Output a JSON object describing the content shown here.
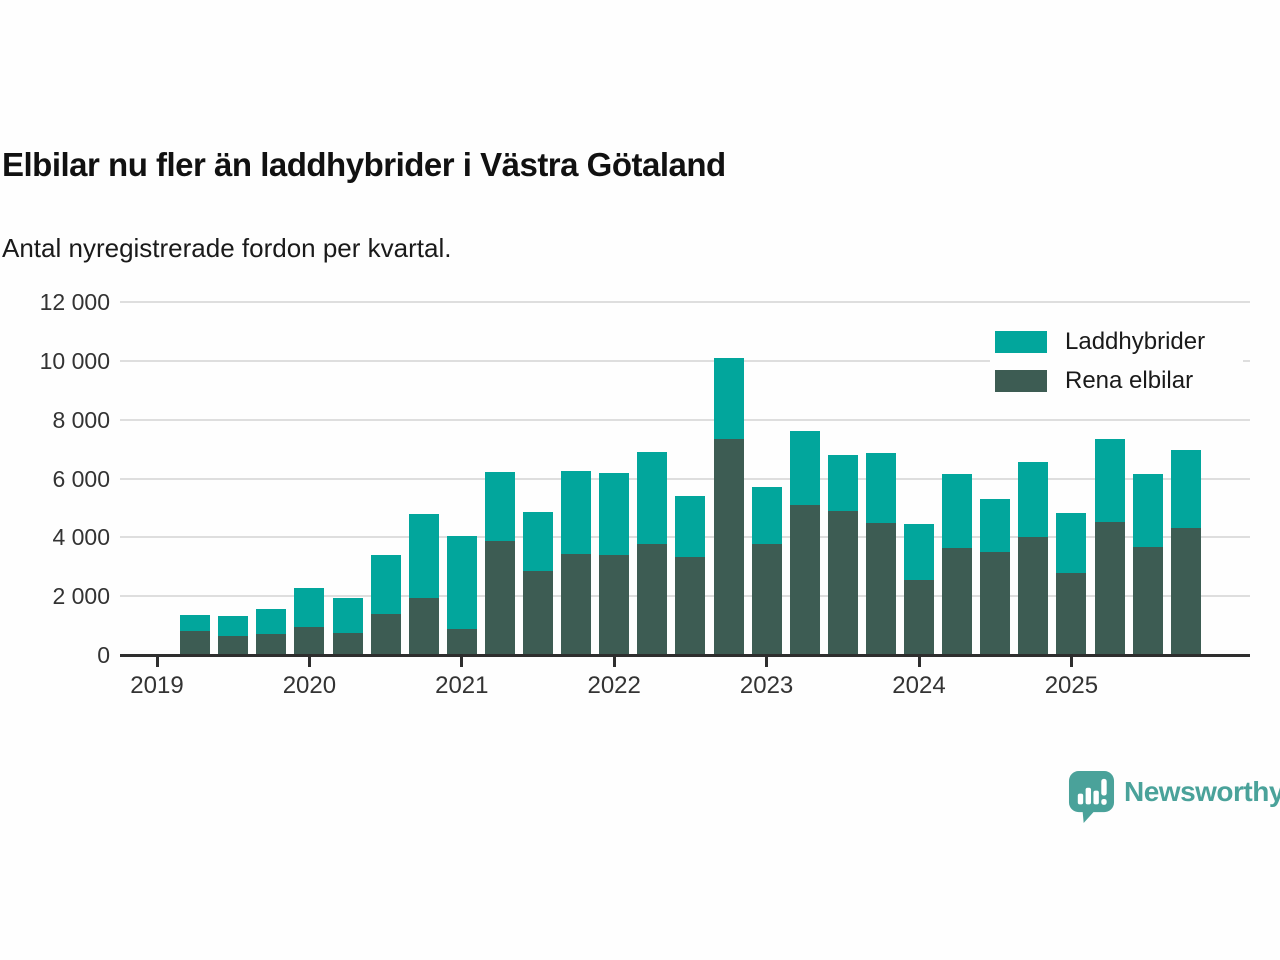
{
  "header": {
    "title": "Elbilar nu fler än laddhybrider i Västra Götaland",
    "subtitle": "Antal nyregistrerade fordon per kvartal."
  },
  "chart_data": {
    "type": "bar",
    "stacked": true,
    "title": "Elbilar nu fler än laddhybrider i Västra Götaland",
    "subtitle": "Antal nyregistrerade fordon per kvartal.",
    "xlabel": "",
    "ylabel": "",
    "ylim": [
      0,
      12000
    ],
    "ytick_interval": 2000,
    "ytick_labels": [
      "0",
      "2 000",
      "4 000",
      "6 000",
      "8 000",
      "10 000",
      "12 000"
    ],
    "grid": true,
    "legend_position": "top-right",
    "year_labels": [
      "2019",
      "2020",
      "2021",
      "2022",
      "2023",
      "2024",
      "2025"
    ],
    "first_bar_quarter_offset": 1,
    "categories": [
      "2019 Q2",
      "2019 Q3",
      "2019 Q4",
      "2020 Q1",
      "2020 Q2",
      "2020 Q3",
      "2020 Q4",
      "2021 Q1",
      "2021 Q2",
      "2021 Q3",
      "2021 Q4",
      "2022 Q1",
      "2022 Q2",
      "2022 Q3",
      "2022 Q4",
      "2023 Q1",
      "2023 Q2",
      "2023 Q3",
      "2023 Q4",
      "2024 Q1",
      "2024 Q2",
      "2024 Q3",
      "2024 Q4",
      "2025 Q1",
      "2025 Q2",
      "2025 Q3",
      "2025 Q4"
    ],
    "series": [
      {
        "name": "Rena elbilar",
        "color": "#3D5C53",
        "values": [
          820,
          660,
          710,
          950,
          750,
          1390,
          1950,
          870,
          3890,
          2850,
          3440,
          3400,
          3760,
          3340,
          7340,
          3760,
          5100,
          4890,
          4490,
          2550,
          3640,
          3500,
          4010,
          2780,
          4510,
          3670,
          4310
        ]
      },
      {
        "name": "Laddhybrider",
        "color": "#02A69C",
        "values": [
          540,
          650,
          840,
          1330,
          1180,
          2010,
          2850,
          3180,
          2330,
          2010,
          2810,
          2800,
          3140,
          2060,
          2760,
          1940,
          2500,
          1910,
          2360,
          1900,
          2510,
          1800,
          2540,
          2040,
          2840,
          2480,
          2660
        ]
      }
    ]
  },
  "legend": {
    "items": [
      {
        "label": "Laddhybrider",
        "color": "#02A69C"
      },
      {
        "label": "Rena elbilar",
        "color": "#3D5C53"
      }
    ]
  },
  "branding": {
    "logo_text": "Newsworthy",
    "logo_color": "#4AA29A",
    "logo_icon": "bar-chart-speech-bubble-icon"
  }
}
